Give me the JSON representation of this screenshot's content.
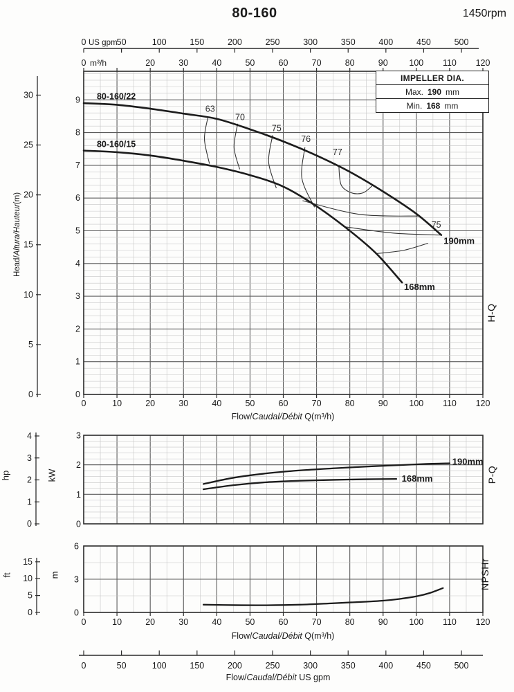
{
  "title": "80-160",
  "rpm": "1450rpm",
  "impeller_box": {
    "header": "IMPELLER DIA.",
    "rows": [
      {
        "label": "Max.",
        "value": "190",
        "unit": "mm"
      },
      {
        "label": "Min.",
        "value": "168",
        "unit": "mm"
      }
    ]
  },
  "labels": {
    "flow_plain": "Flow/",
    "flow_italic": "Caudal/Débit",
    "flow_q_suffix": " Q(m³/h)",
    "flow_gpm_suffix": "  US gpm",
    "head_plain": "Head/",
    "head_italic": "Altura/Hauteur",
    "head_ft_suffix": "(ft)",
    "head_m_suffix": "(m)",
    "hp": "hp",
    "kw": "kW",
    "ft": "ft",
    "m": "m",
    "hq": "H-Q",
    "pq": "P-Q",
    "npshr": "NPSHr",
    "us_gpm_unit": "US gpm",
    "m3h_unit": "m³/h",
    "zero": "0"
  },
  "chart_data": [
    {
      "type": "line",
      "name": "H-Q",
      "x_axis": {
        "label": "Flow/Caudal/Débit Q(m³/h)",
        "min": 0,
        "max": 120,
        "major_ticks": [
          0,
          10,
          20,
          30,
          40,
          50,
          60,
          70,
          80,
          90,
          100,
          110,
          120
        ],
        "minor_step": 5
      },
      "x_axis_top_m3h": {
        "labeled_ticks": [
          20,
          30,
          40,
          50,
          60,
          70,
          80,
          90,
          100,
          110,
          120
        ],
        "first_label": "0",
        "unit": "m³/h"
      },
      "x_axis_top_gpm": {
        "ticks": [
          0,
          50,
          100,
          150,
          200,
          250,
          300,
          350,
          400,
          450,
          500
        ],
        "first_label": "0",
        "unit": "US gpm",
        "gpm_per_m3h": 4.40287
      },
      "y_axis_m": {
        "label": "Head/Altura/Hauteur(m)",
        "ticks": [
          0,
          1,
          2,
          3,
          4,
          5,
          6,
          7,
          8,
          9
        ],
        "top": 9.87,
        "minor_step": 0.2
      },
      "y_axis_ft": {
        "label": "Head/Altura/Hauteur(ft)",
        "ticks": [
          0,
          5,
          10,
          15,
          20,
          25,
          30
        ]
      },
      "series": [
        {
          "name": "80-160/22",
          "impeller": "190mm",
          "points": [
            [
              0,
              8.9
            ],
            [
              10,
              8.85
            ],
            [
              20,
              8.73
            ],
            [
              30,
              8.58
            ],
            [
              40,
              8.42
            ],
            [
              50,
              8.1
            ],
            [
              60,
              7.73
            ],
            [
              70,
              7.3
            ],
            [
              80,
              6.8
            ],
            [
              90,
              6.2
            ],
            [
              100,
              5.52
            ],
            [
              107.5,
              4.87
            ]
          ]
        },
        {
          "name": "80-160/15",
          "impeller": "168mm",
          "points": [
            [
              0,
              7.45
            ],
            [
              10,
              7.4
            ],
            [
              20,
              7.3
            ],
            [
              30,
              7.14
            ],
            [
              40,
              6.95
            ],
            [
              50,
              6.7
            ],
            [
              60,
              6.35
            ],
            [
              70,
              5.75
            ],
            [
              80,
              5.0
            ],
            [
              88,
              4.3
            ],
            [
              95.7,
              3.42
            ]
          ]
        }
      ],
      "efficiency_labels": [
        {
          "text": "63",
          "q": 38,
          "h": 8.72
        },
        {
          "text": "70",
          "q": 47,
          "h": 8.47
        },
        {
          "text": "75",
          "q": 58,
          "h": 8.13
        },
        {
          "text": "76",
          "q": 66.8,
          "h": 7.8
        },
        {
          "text": "77",
          "q": 76.3,
          "h": 7.4
        },
        {
          "text": "75",
          "q": 106,
          "h": 5.18
        }
      ],
      "efficiency_contours": [
        {
          "eff": "63",
          "points": [
            [
              37.3,
              8.45
            ],
            [
              36.3,
              7.8
            ],
            [
              37.8,
              7.05
            ]
          ]
        },
        {
          "eff": "70",
          "points": [
            [
              46.3,
              8.27
            ],
            [
              45.2,
              7.55
            ],
            [
              46.9,
              6.88
            ]
          ]
        },
        {
          "eff": "75",
          "points": [
            [
              56.8,
              7.92
            ],
            [
              55.6,
              7.1
            ],
            [
              57.9,
              6.3
            ]
          ]
        },
        {
          "eff": "76",
          "points": [
            [
              66.5,
              7.55
            ],
            [
              65.6,
              6.6
            ],
            [
              69.4,
              5.72
            ]
          ]
        },
        {
          "eff": "77",
          "points": [
            [
              76.7,
              6.98
            ],
            [
              77.4,
              6.4
            ],
            [
              80.5,
              6.16
            ],
            [
              84,
              6.16
            ],
            [
              86.8,
              6.38
            ]
          ]
        },
        {
          "eff": "76",
          "points": [
            [
              65.8,
              5.92
            ],
            [
              83,
              5.5
            ],
            [
              101,
              5.45
            ]
          ]
        },
        {
          "eff": "75",
          "points": [
            [
              78.6,
              5.12
            ],
            [
              93,
              4.93
            ],
            [
              107.2,
              4.87
            ]
          ]
        },
        {
          "eff": "70",
          "points": [
            [
              87.7,
              4.3
            ],
            [
              96,
              4.4
            ],
            [
              103.5,
              4.62
            ]
          ]
        }
      ],
      "annotations": [
        {
          "text": "80-160/22",
          "q": 9.8,
          "h": 9.1,
          "anchor": "middle",
          "size": 12.5
        },
        {
          "text": "80-160/15",
          "q": 9.8,
          "h": 7.64,
          "anchor": "middle",
          "size": 12.5
        },
        {
          "text": "190mm",
          "q": 108.2,
          "h": 4.68,
          "anchor": "start",
          "size": 13
        },
        {
          "text": "168mm",
          "q": 96.3,
          "h": 3.28,
          "anchor": "start",
          "size": 13
        }
      ]
    },
    {
      "type": "line",
      "name": "P-Q",
      "y_axis_kw": {
        "unit": "kW",
        "ticks": [
          0,
          1,
          2,
          3
        ],
        "max": 3,
        "minor_step": 0.2
      },
      "y_axis_hp": {
        "unit": "hp",
        "ticks": [
          0,
          1,
          2,
          3,
          4
        ]
      },
      "series": [
        {
          "name": "190mm",
          "points": [
            [
              36,
              1.35
            ],
            [
              45,
              1.56
            ],
            [
              55,
              1.71
            ],
            [
              65,
              1.81
            ],
            [
              75,
              1.88
            ],
            [
              85,
              1.94
            ],
            [
              95,
              1.99
            ],
            [
              103,
              2.03
            ],
            [
              110,
              2.05
            ]
          ]
        },
        {
          "name": "168mm",
          "points": [
            [
              36,
              1.17
            ],
            [
              45,
              1.31
            ],
            [
              55,
              1.41
            ],
            [
              65,
              1.46
            ],
            [
              75,
              1.49
            ],
            [
              85,
              1.51
            ],
            [
              94,
              1.52
            ]
          ]
        }
      ],
      "annotations": [
        {
          "text": "190mm",
          "q": 110.8,
          "kw": 2.1,
          "anchor": "start",
          "size": 13
        },
        {
          "text": "168mm",
          "q": 95.6,
          "kw": 1.52,
          "anchor": "start",
          "size": 13
        }
      ]
    },
    {
      "type": "line",
      "name": "NPSHr",
      "x_axis": {
        "label": "Flow/Caudal/Débit Q(m³/h)",
        "major_ticks": [
          0,
          10,
          20,
          30,
          40,
          50,
          60,
          70,
          80,
          90,
          100,
          110,
          120
        ],
        "minor_step": 5
      },
      "x_axis_bottom_gpm": {
        "label": "Flow/Caudal/Débit  US gpm",
        "ticks": [
          0,
          50,
          100,
          150,
          200,
          250,
          300,
          350,
          400,
          450,
          500
        ]
      },
      "y_axis_m": {
        "unit": "m",
        "ticks": [
          0,
          3,
          6
        ],
        "max": 6,
        "minor_step": 1.5
      },
      "y_axis_ft": {
        "unit": "ft",
        "ticks": [
          0,
          5,
          10,
          15
        ]
      },
      "series": [
        {
          "name": "NPSHr",
          "points": [
            [
              36,
              0.7
            ],
            [
              45,
              0.66
            ],
            [
              55,
              0.65
            ],
            [
              65,
              0.7
            ],
            [
              75,
              0.83
            ],
            [
              85,
              0.97
            ],
            [
              90,
              1.06
            ],
            [
              95,
              1.22
            ],
            [
              100,
              1.45
            ],
            [
              104,
              1.75
            ],
            [
              108,
              2.2
            ]
          ]
        }
      ]
    }
  ]
}
